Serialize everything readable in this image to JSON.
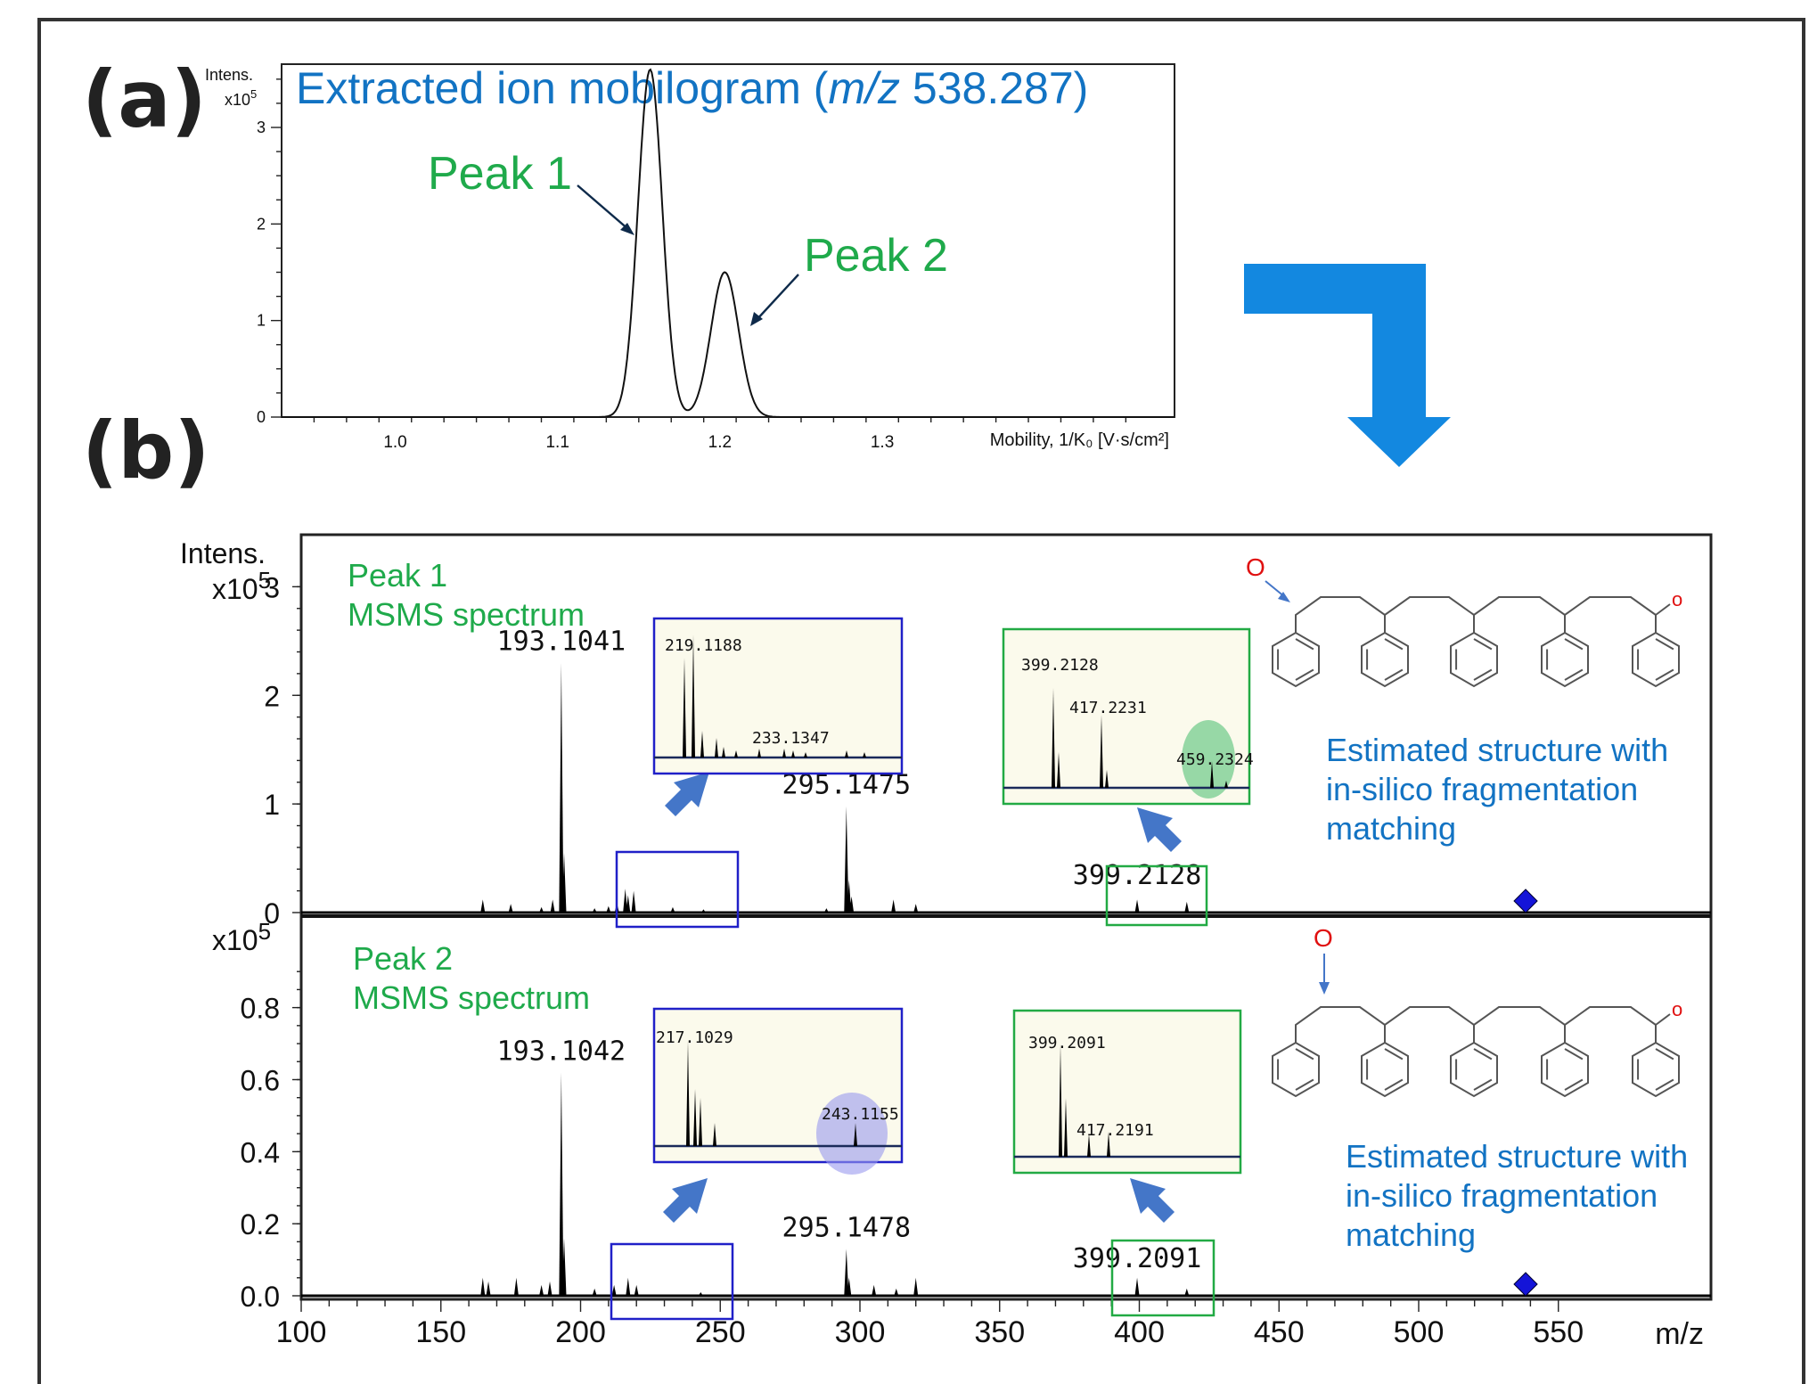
{
  "panel_labels": {
    "a": "(a)",
    "b": "(b)"
  },
  "colors": {
    "blue_title": "#1273c3",
    "green": "#1faa4b",
    "arrow": "#1388e0",
    "small_arrow": "#4476c8",
    "box_blue": "#2020c8",
    "box_green": "#22aa44",
    "inset_bg": "#fbfaec",
    "diamond": "#1414d8",
    "oxygen": "#e01010"
  },
  "chart_data": [
    {
      "type": "line",
      "title_prefix": "Extracted ion mobilogram (",
      "title_mz": "m/z",
      "title_suffix": " 538.287)",
      "ylabel_line1": "Intens.",
      "ylabel_line2": "x10",
      "ylabel_exp": "5",
      "xlabel": "Mobility, 1/K₀ [V·s/cm²]",
      "xlim": [
        0.93,
        1.48
      ],
      "ylim": [
        0,
        3.6
      ],
      "xticks": [
        1.0,
        1.1,
        1.2,
        1.3
      ],
      "xticklabels": [
        "1.0",
        "1.1",
        "1.2",
        "1.3"
      ],
      "yticks": [
        0,
        1,
        2,
        3
      ],
      "yticklabels": [
        "0",
        "1",
        "2",
        "3"
      ],
      "peaks": [
        {
          "label": "Peak 1",
          "center": 1.157,
          "height": 3.6,
          "sigma": 0.0075
        },
        {
          "label": "Peak 2",
          "center": 1.203,
          "height": 1.5,
          "sigma": 0.0085
        }
      ]
    },
    {
      "type": "bar",
      "subtype": "mass-spectrum",
      "ylabel": "Intens.",
      "yexp_label": "x10",
      "yexp": "5",
      "xlabel": "m/z",
      "xlim": [
        100,
        550
      ],
      "xticks": [
        100,
        150,
        200,
        250,
        300,
        350,
        400,
        450,
        500,
        550
      ],
      "xticklabels": [
        "100",
        "150",
        "200",
        "250",
        "300",
        "350",
        "400",
        "450",
        "500",
        "550"
      ],
      "panels": [
        {
          "name": "Peak 1",
          "title_line1": "Peak 1",
          "title_line2": "MSMS spectrum",
          "ylim": [
            0,
            3.2
          ],
          "yticks": [
            0,
            1,
            2,
            3
          ],
          "yticklabels": [
            "0",
            "1",
            "2",
            "3"
          ],
          "precursor_mz": 538.287,
          "annotations": [
            {
              "mz": 193.1041,
              "label": "193.1041"
            },
            {
              "mz": 295.1475,
              "label": "295.1475"
            },
            {
              "mz": 399.2128,
              "label": "399.2128"
            }
          ],
          "peaks": [
            [
              165,
              0.12
            ],
            [
              175,
              0.08
            ],
            [
              186,
              0.05
            ],
            [
              190,
              0.12
            ],
            [
              193.1041,
              2.3
            ],
            [
              194.1,
              0.55
            ],
            [
              205,
              0.04
            ],
            [
              210,
              0.06
            ],
            [
              213,
              0.09
            ],
            [
              216,
              0.22
            ],
            [
              217,
              0.16
            ],
            [
              219,
              0.2
            ],
            [
              233,
              0.05
            ],
            [
              244,
              0.03
            ],
            [
              288,
              0.04
            ],
            [
              295.1475,
              0.98
            ],
            [
              296.1,
              0.3
            ],
            [
              297,
              0.15
            ],
            [
              312,
              0.12
            ],
            [
              320,
              0.08
            ],
            [
              399.2128,
              0.12
            ],
            [
              417,
              0.1
            ]
          ],
          "inset_left": {
            "labels": [
              {
                "mz": 219.1188,
                "label": "219.1188"
              },
              {
                "mz": 233.1347,
                "label": "233.1347"
              }
            ]
          },
          "inset_right": {
            "labels": [
              {
                "mz": 399.2128,
                "label": "399.2128"
              },
              {
                "mz": 417.2231,
                "label": "417.2231"
              },
              {
                "mz": 459.2324,
                "label": "459.2324"
              }
            ]
          },
          "structure_text": [
            "Estimated structure with",
            "in-silico fragmentation",
            "matching"
          ],
          "oxygen_label": "O",
          "terminal_o_label": "o"
        },
        {
          "name": "Peak 2",
          "title_line1": "Peak 2",
          "title_line2": "MSMS spectrum",
          "ylim": [
            0,
            0.95
          ],
          "yticks": [
            0,
            0.2,
            0.4,
            0.6,
            0.8
          ],
          "yticklabels": [
            "0.0",
            "0.2",
            "0.4",
            "0.6",
            "0.8"
          ],
          "precursor_mz": 538.287,
          "annotations": [
            {
              "mz": 193.1042,
              "label": "193.1042"
            },
            {
              "mz": 295.1478,
              "label": "295.1478"
            },
            {
              "mz": 399.2091,
              "label": "399.2091"
            }
          ],
          "peaks": [
            [
              165,
              0.05
            ],
            [
              167,
              0.04
            ],
            [
              177,
              0.05
            ],
            [
              186,
              0.03
            ],
            [
              189,
              0.04
            ],
            [
              193.1042,
              0.62
            ],
            [
              194.1,
              0.16
            ],
            [
              205,
              0.02
            ],
            [
              212,
              0.03
            ],
            [
              217,
              0.05
            ],
            [
              220,
              0.03
            ],
            [
              243,
              0.01
            ],
            [
              295.1478,
              0.13
            ],
            [
              296.1,
              0.05
            ],
            [
              305,
              0.03
            ],
            [
              313,
              0.02
            ],
            [
              320,
              0.05
            ],
            [
              399.2091,
              0.05
            ],
            [
              417,
              0.02
            ]
          ],
          "inset_left": {
            "labels": [
              {
                "mz": 217.1029,
                "label": "217.1029"
              },
              {
                "mz": 243.1155,
                "label": "243.1155"
              }
            ]
          },
          "inset_right": {
            "labels": [
              {
                "mz": 399.2091,
                "label": "399.2091"
              },
              {
                "mz": 417.2191,
                "label": "417.2191"
              }
            ]
          },
          "structure_text": [
            "Estimated structure with",
            "in-silico fragmentation",
            "matching"
          ],
          "oxygen_label": "O",
          "terminal_o_label": "o"
        }
      ]
    }
  ]
}
